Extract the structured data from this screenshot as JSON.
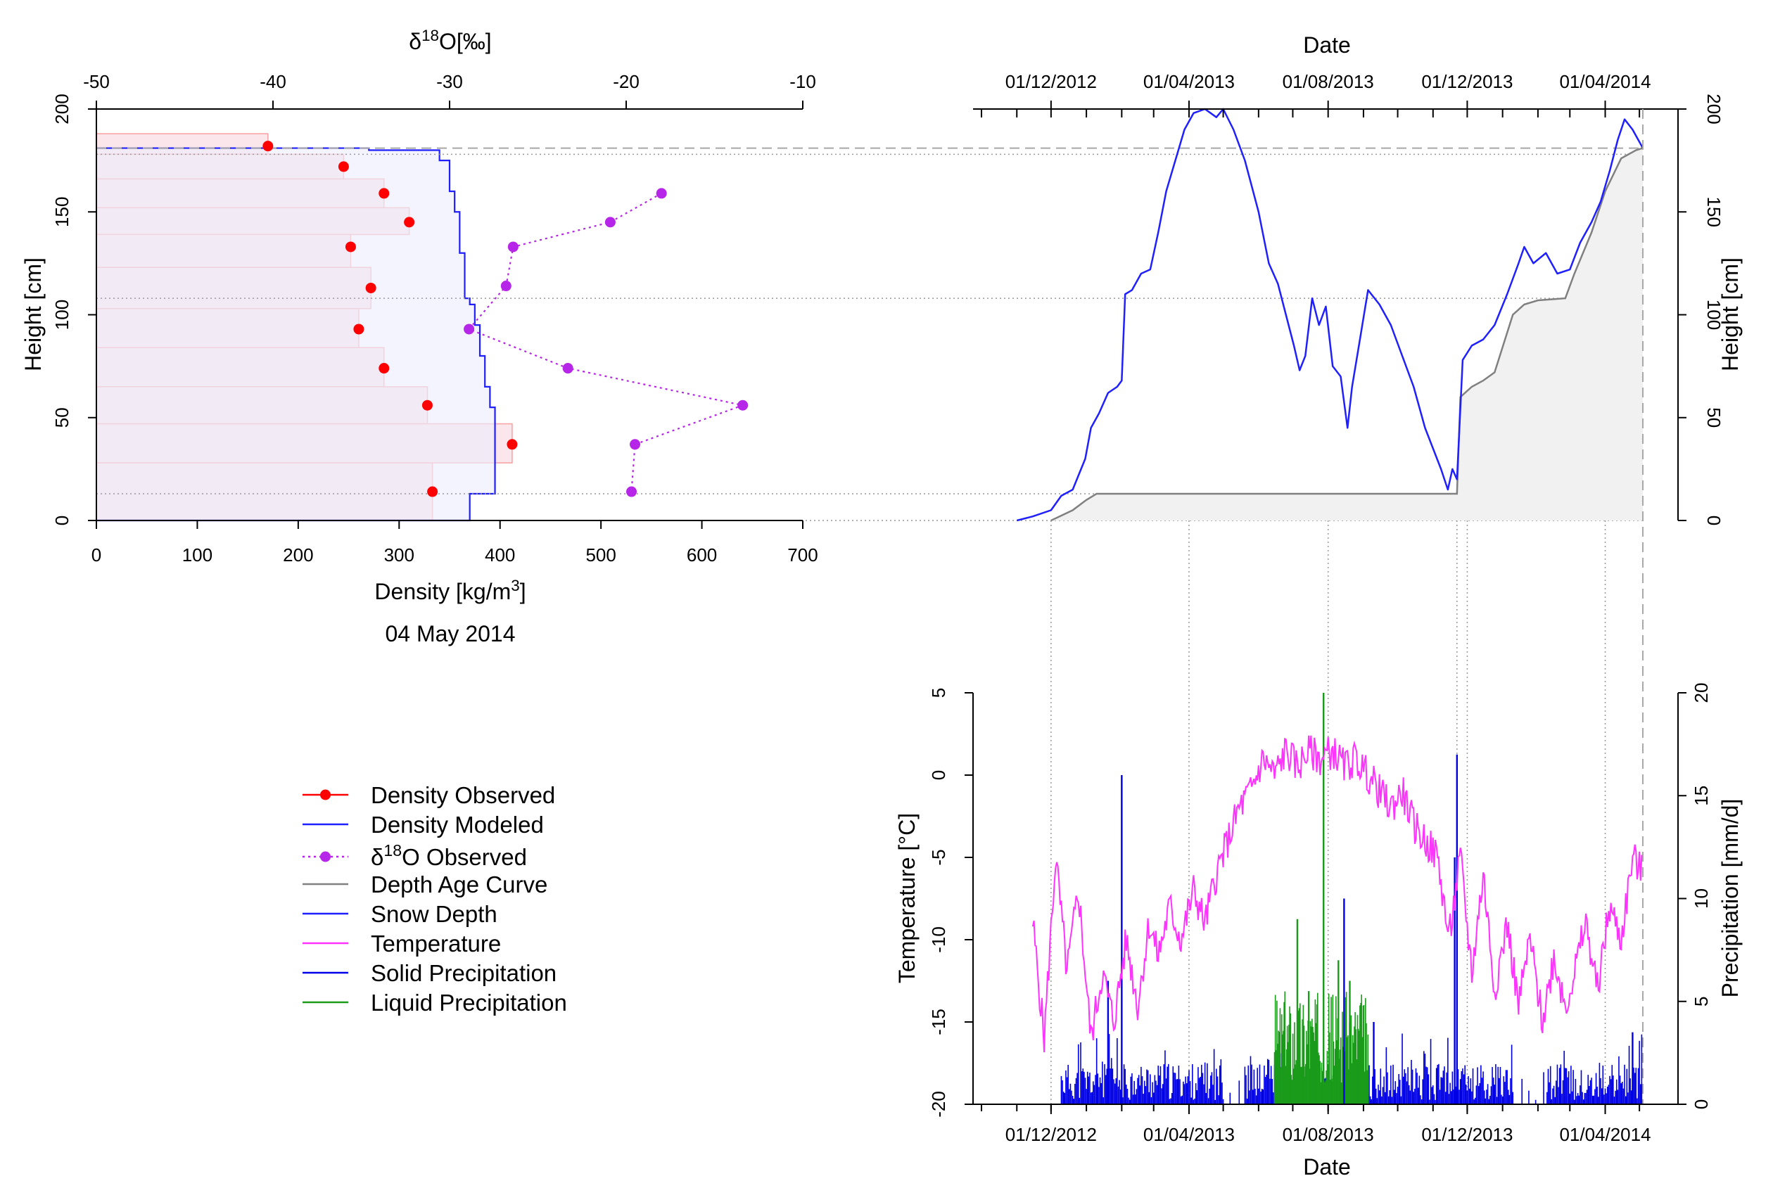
{
  "colors": {
    "density_observed": "#ff0000",
    "density_modeled": "#1f1fff",
    "d18o_observed": "#b626e8",
    "depth_age_curve": "#808080",
    "snow_depth": "#1f1fff",
    "temperature": "#ff33ff",
    "solid_precipitation": "#0000e6",
    "liquid_precipitation": "#1a9b1a",
    "observed_fill": "#fbe6ec",
    "modeled_fill": "#edeefc",
    "age_fill": "#f1f1f1"
  },
  "chart_data": [
    {
      "type": "step-profile",
      "id": "density_profile",
      "xlabel": "Density [kg/m3]",
      "ylabel": "Height [cm]",
      "subtitle": "04 May 2014",
      "xlim": [
        0,
        700
      ],
      "ylim": [
        0,
        200
      ],
      "x_ticks": [
        "0",
        "100",
        "200",
        "300",
        "400",
        "500",
        "600",
        "700"
      ],
      "y_ticks": [
        "0",
        "50",
        "100",
        "150",
        "200"
      ],
      "top_axis": {
        "label": "δ18O[‰]",
        "range": [
          -50,
          -10
        ],
        "ticks": [
          "-50",
          "-40",
          "-30",
          "-20",
          "-10"
        ]
      },
      "density_observed": {
        "points": [
          [
            170,
            182
          ],
          [
            245,
            172
          ],
          [
            285,
            159
          ],
          [
            310,
            145
          ],
          [
            252,
            133
          ],
          [
            272,
            113
          ],
          [
            260,
            93
          ],
          [
            285,
            74
          ],
          [
            328,
            56
          ],
          [
            412,
            37
          ],
          [
            333,
            14
          ]
        ],
        "layers": [
          [
            0,
            170,
            178,
            188
          ],
          [
            0,
            245,
            166,
            178
          ],
          [
            0,
            285,
            152,
            166
          ],
          [
            0,
            310,
            139,
            152
          ],
          [
            0,
            252,
            123,
            139
          ],
          [
            0,
            272,
            103,
            123
          ],
          [
            0,
            260,
            84,
            103
          ],
          [
            0,
            285,
            65,
            84
          ],
          [
            0,
            328,
            47,
            65
          ],
          [
            0,
            412,
            28,
            47
          ],
          [
            0,
            333,
            0,
            28
          ]
        ]
      },
      "density_modeled": [
        [
          0,
          181
        ],
        [
          270,
          181
        ],
        [
          270,
          180
        ],
        [
          340,
          180
        ],
        [
          340,
          175
        ],
        [
          350,
          175
        ],
        [
          350,
          160
        ],
        [
          355,
          160
        ],
        [
          355,
          150
        ],
        [
          360,
          150
        ],
        [
          360,
          130
        ],
        [
          365,
          130
        ],
        [
          365,
          108
        ],
        [
          370,
          108
        ],
        [
          370,
          105
        ],
        [
          375,
          105
        ],
        [
          375,
          95
        ],
        [
          380,
          95
        ],
        [
          380,
          80
        ],
        [
          385,
          80
        ],
        [
          385,
          65
        ],
        [
          390,
          65
        ],
        [
          390,
          55
        ],
        [
          395,
          55
        ],
        [
          395,
          13
        ],
        [
          370,
          13
        ],
        [
          370,
          0
        ],
        [
          0,
          0
        ]
      ],
      "d18o_observed": {
        "points": [
          [
            -18.0,
            159
          ],
          [
            -20.9,
            145
          ],
          [
            -26.4,
            133
          ],
          [
            -26.8,
            114
          ],
          [
            -28.9,
            93
          ],
          [
            -23.3,
            74
          ],
          [
            -13.4,
            56
          ],
          [
            -19.5,
            37
          ],
          [
            -19.7,
            14
          ]
        ]
      },
      "reference_lines": {
        "dashed": [
          181
        ],
        "dotted": [
          178,
          108,
          13,
          0
        ]
      }
    },
    {
      "type": "line",
      "id": "snow_depth",
      "xlabel": "Date",
      "ylabel": "Height [cm]",
      "ylim": [
        0,
        200
      ],
      "x_range": [
        "2012-10-01",
        "2014-05-04"
      ],
      "x_ticks": [
        "01/12/2012",
        "01/04/2013",
        "01/08/2013",
        "01/12/2013",
        "01/04/2014"
      ],
      "y_ticks": [
        "0",
        "50",
        "100",
        "150",
        "200"
      ],
      "series": [
        {
          "key": "snow_depth",
          "values": [
            [
              "2012-11-01",
              0
            ],
            [
              "2012-11-15",
              2
            ],
            [
              "2012-12-01",
              5
            ],
            [
              "2012-12-10",
              12
            ],
            [
              "2012-12-20",
              15
            ],
            [
              "2012-12-31",
              30
            ],
            [
              "2013-01-05",
              45
            ],
            [
              "2013-01-12",
              52
            ],
            [
              "2013-01-20",
              62
            ],
            [
              "2013-01-28",
              65
            ],
            [
              "2013-02-01",
              68
            ],
            [
              "2013-02-04",
              110
            ],
            [
              "2013-02-10",
              112
            ],
            [
              "2013-02-18",
              120
            ],
            [
              "2013-02-26",
              122
            ],
            [
              "2013-03-05",
              140
            ],
            [
              "2013-03-12",
              160
            ],
            [
              "2013-03-20",
              175
            ],
            [
              "2013-03-28",
              190
            ],
            [
              "2013-04-05",
              198
            ],
            [
              "2013-04-15",
              200
            ],
            [
              "2013-04-25",
              196
            ],
            [
              "2013-05-01",
              200
            ],
            [
              "2013-05-10",
              190
            ],
            [
              "2013-05-20",
              175
            ],
            [
              "2013-06-01",
              150
            ],
            [
              "2013-06-10",
              125
            ],
            [
              "2013-06-18",
              115
            ],
            [
              "2013-06-25",
              100
            ],
            [
              "2013-07-02",
              85
            ],
            [
              "2013-07-07",
              73
            ],
            [
              "2013-07-12",
              80
            ],
            [
              "2013-07-18",
              108
            ],
            [
              "2013-07-24",
              95
            ],
            [
              "2013-07-30",
              104
            ],
            [
              "2013-08-05",
              75
            ],
            [
              "2013-08-12",
              70
            ],
            [
              "2013-08-18",
              45
            ],
            [
              "2013-08-22",
              65
            ],
            [
              "2013-08-28",
              85
            ],
            [
              "2013-09-05",
              112
            ],
            [
              "2013-09-15",
              105
            ],
            [
              "2013-09-25",
              95
            ],
            [
              "2013-10-05",
              80
            ],
            [
              "2013-10-15",
              65
            ],
            [
              "2013-10-25",
              45
            ],
            [
              "2013-11-01",
              35
            ],
            [
              "2013-11-08",
              25
            ],
            [
              "2013-11-14",
              15
            ],
            [
              "2013-11-18",
              25
            ],
            [
              "2013-11-22",
              20
            ],
            [
              "2013-11-27",
              78
            ],
            [
              "2013-12-05",
              85
            ],
            [
              "2013-12-15",
              88
            ],
            [
              "2013-12-25",
              95
            ],
            [
              "2014-01-05",
              110
            ],
            [
              "2014-01-15",
              125
            ],
            [
              "2014-01-20",
              133
            ],
            [
              "2014-01-28",
              125
            ],
            [
              "2014-02-08",
              130
            ],
            [
              "2014-02-18",
              120
            ],
            [
              "2014-03-01",
              122
            ],
            [
              "2014-03-10",
              135
            ],
            [
              "2014-03-20",
              145
            ],
            [
              "2014-03-28",
              155
            ],
            [
              "2014-04-05",
              170
            ],
            [
              "2014-04-12",
              185
            ],
            [
              "2014-04-18",
              195
            ],
            [
              "2014-04-25",
              190
            ],
            [
              "2014-04-30",
              185
            ],
            [
              "2014-05-04",
              181
            ]
          ]
        },
        {
          "key": "depth_age_curve",
          "values": [
            [
              "2012-12-01",
              0
            ],
            [
              "2012-12-20",
              5
            ],
            [
              "2013-01-01",
              10
            ],
            [
              "2013-01-10",
              13
            ],
            [
              "2013-11-22",
              13
            ],
            [
              "2013-11-25",
              60
            ],
            [
              "2013-12-05",
              65
            ],
            [
              "2013-12-15",
              68
            ],
            [
              "2013-12-25",
              72
            ],
            [
              "2014-01-10",
              100
            ],
            [
              "2014-01-20",
              105
            ],
            [
              "2014-02-01",
              107
            ],
            [
              "2014-02-25",
              108
            ],
            [
              "2014-03-05",
              120
            ],
            [
              "2014-03-20",
              140
            ],
            [
              "2014-04-01",
              160
            ],
            [
              "2014-04-15",
              176
            ],
            [
              "2014-04-28",
              180
            ],
            [
              "2014-05-04",
              181
            ]
          ]
        }
      ],
      "reference_lines": {
        "dashed": [
          181
        ],
        "dotted": [
          178,
          108,
          13,
          0
        ]
      }
    },
    {
      "type": "line+bar",
      "id": "meteo",
      "xlabel": "Date",
      "ylabel": "Temperature [°C]",
      "ylabel_right": "Precipitation [mm/d]",
      "ylim": [
        -20,
        5
      ],
      "ylim_right": [
        0,
        20
      ],
      "x_range": [
        "2012-10-01",
        "2014-05-04"
      ],
      "x_ticks": [
        "01/12/2012",
        "01/04/2013",
        "01/08/2013",
        "01/12/2013",
        "01/04/2014"
      ],
      "y_ticks": [
        "5",
        "0",
        "-5",
        "-10",
        "-15",
        "-20"
      ],
      "y_ticks_right": [
        "20",
        "15",
        "10",
        "5",
        "0"
      ],
      "temperature": [
        [
          "2012-11-15",
          -9
        ],
        [
          "2012-11-25",
          -16
        ],
        [
          "2012-12-05",
          -5
        ],
        [
          "2012-12-15",
          -12
        ],
        [
          "2012-12-25",
          -7
        ],
        [
          "2013-01-05",
          -16
        ],
        [
          "2013-01-15",
          -12
        ],
        [
          "2013-01-25",
          -15
        ],
        [
          "2013-02-05",
          -10
        ],
        [
          "2013-02-15",
          -14
        ],
        [
          "2013-02-25",
          -9
        ],
        [
          "2013-03-05",
          -11
        ],
        [
          "2013-03-15",
          -8
        ],
        [
          "2013-03-25",
          -10
        ],
        [
          "2013-04-05",
          -7
        ],
        [
          "2013-04-15",
          -9
        ],
        [
          "2013-04-25",
          -6
        ],
        [
          "2013-05-05",
          -4
        ],
        [
          "2013-05-15",
          -2
        ],
        [
          "2013-05-25",
          -1
        ],
        [
          "2013-06-05",
          1
        ],
        [
          "2013-06-15",
          0
        ],
        [
          "2013-06-25",
          1.5
        ],
        [
          "2013-07-05",
          0.5
        ],
        [
          "2013-07-15",
          1.5
        ],
        [
          "2013-07-25",
          1
        ],
        [
          "2013-08-05",
          1.5
        ],
        [
          "2013-08-15",
          0.5
        ],
        [
          "2013-08-25",
          1
        ],
        [
          "2013-09-05",
          0
        ],
        [
          "2013-09-15",
          -1
        ],
        [
          "2013-09-25",
          -2
        ],
        [
          "2013-10-05",
          -1
        ],
        [
          "2013-10-15",
          -3
        ],
        [
          "2013-10-25",
          -4
        ],
        [
          "2013-11-05",
          -5
        ],
        [
          "2013-11-15",
          -10
        ],
        [
          "2013-11-25",
          -5
        ],
        [
          "2013-12-05",
          -12
        ],
        [
          "2013-12-15",
          -6
        ],
        [
          "2013-12-25",
          -13
        ],
        [
          "2014-01-05",
          -9
        ],
        [
          "2014-01-15",
          -14
        ],
        [
          "2014-01-25",
          -10
        ],
        [
          "2014-02-05",
          -15
        ],
        [
          "2014-02-15",
          -11
        ],
        [
          "2014-02-25",
          -14
        ],
        [
          "2014-03-05",
          -12
        ],
        [
          "2014-03-15",
          -9
        ],
        [
          "2014-03-25",
          -13
        ],
        [
          "2014-04-05",
          -8
        ],
        [
          "2014-04-15",
          -10
        ],
        [
          "2014-04-25",
          -5
        ],
        [
          "2014-05-04",
          -6
        ]
      ],
      "precipitation_spikes": {
        "solid": [
          [
            "2013-02-01",
            16
          ],
          [
            "2013-01-20",
            6
          ],
          [
            "2013-11-22",
            17
          ],
          [
            "2013-11-20",
            12
          ],
          [
            "2013-08-15",
            10
          ],
          [
            "2013-09-10",
            4
          ],
          [
            "2014-04-25",
            3.5
          ]
        ],
        "liquid": [
          [
            "2013-07-28",
            20
          ],
          [
            "2013-07-05",
            9
          ],
          [
            "2013-07-15",
            5.5
          ],
          [
            "2013-08-10",
            7
          ],
          [
            "2013-08-20",
            6
          ]
        ]
      },
      "precipitation_background": {
        "solid_baseline_mm": [
          0.2,
          2
        ],
        "liquid_period": [
          "2013-06-15",
          "2013-09-05"
        ]
      }
    }
  ],
  "legend": {
    "items": [
      {
        "key": "density_observed",
        "label": "Density Observed",
        "style": "line-point"
      },
      {
        "key": "density_modeled",
        "label": "Density Modeled",
        "style": "line"
      },
      {
        "key": "d18o_observed",
        "label": "δ18O Observed",
        "style": "dotted-point"
      },
      {
        "key": "depth_age_curve",
        "label": "Depth Age Curve",
        "style": "line"
      },
      {
        "key": "snow_depth",
        "label": "Snow Depth",
        "style": "line"
      },
      {
        "key": "temperature",
        "label": "Temperature",
        "style": "line"
      },
      {
        "key": "solid_precipitation",
        "label": "Solid Precipitation",
        "style": "line"
      },
      {
        "key": "liquid_precipitation",
        "label": "Liquid Precipitation",
        "style": "line"
      }
    ]
  }
}
